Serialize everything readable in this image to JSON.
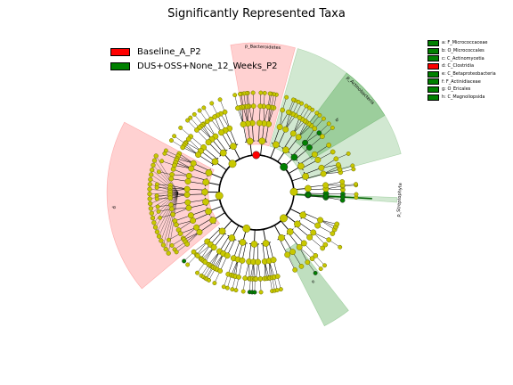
{
  "chart_data": {
    "type": "cladogram",
    "title": "Significantly Represented Taxa",
    "groups": [
      {
        "name": "Baseline_A_P2",
        "color": "#ff0000"
      },
      {
        "name": "DUS+OSS+None_12_Weeks_P2",
        "color": "#008000"
      }
    ],
    "sectors": [
      {
        "label": "p_Bacteroidetes",
        "group": "Baseline_A_P2",
        "from_deg": 75,
        "to_deg": 100,
        "level": "phylum"
      },
      {
        "label": "p",
        "group": "Baseline_A_P2",
        "from_deg": 152,
        "to_deg": 220,
        "level": "phylum"
      },
      {
        "label": "p_Actinobacteria",
        "group": "DUS+OSS+None_12_Weeks_P2",
        "from_deg": 15,
        "to_deg": 74,
        "level": "phylum"
      },
      {
        "label": "b",
        "group": "DUS+OSS+None_12_Weeks_P2",
        "from_deg": 31,
        "to_deg": 53,
        "level": "class"
      },
      {
        "label": "p_Streptophyta",
        "group": "DUS+OSS+None_12_Weeks_P2",
        "from_deg": -4,
        "to_deg": -2,
        "level": "phylum"
      },
      {
        "label": "e",
        "group": "DUS+OSS+None_12_Weeks_P2",
        "from_deg": 297,
        "to_deg": 308,
        "level": "class"
      }
    ],
    "taxa_legend": [
      {
        "key": "a",
        "label": "a: F_Micrococcaceae",
        "group": "DUS+OSS+None_12_Weeks_P2"
      },
      {
        "key": "b",
        "label": "b: O_Micrococcales",
        "group": "DUS+OSS+None_12_Weeks_P2"
      },
      {
        "key": "c",
        "label": "c: C_Actinomycetia",
        "group": "DUS+OSS+None_12_Weeks_P2"
      },
      {
        "key": "d",
        "label": "d: C_Clostridia",
        "group": "Baseline_A_P2"
      },
      {
        "key": "e",
        "label": "e: C_Betaproteobacteria",
        "group": "DUS+OSS+None_12_Weeks_P2"
      },
      {
        "key": "f",
        "label": "f: F_Actinidiaceae",
        "group": "DUS+OSS+None_12_Weeks_P2"
      },
      {
        "key": "g",
        "label": "g: O_Ericales",
        "group": "DUS+OSS+None_12_Weeks_P2"
      },
      {
        "key": "h",
        "label": "h: C_Magnoliopsida",
        "group": "DUS+OSS+None_12_Weeks_P2"
      }
    ],
    "phyla": [
      {
        "from_deg": 110,
        "to_deg": 150
      },
      {
        "from_deg": 152,
        "to_deg": 218
      },
      {
        "from_deg": 222,
        "to_deg": 287
      },
      {
        "from_deg": 293,
        "to_deg": 340
      },
      {
        "from_deg": -6,
        "to_deg": 8
      },
      {
        "from_deg": 12,
        "to_deg": 74
      },
      {
        "from_deg": 77,
        "to_deg": 104
      }
    ],
    "highlighted_nodes": [
      {
        "angle_deg": 88,
        "level": 1,
        "group": "Baseline_A_P2"
      },
      {
        "angle_deg": 180,
        "level": 1,
        "group": "Baseline_A_P2"
      },
      {
        "angle_deg": 44,
        "level": 1,
        "group": "DUS+OSS+None_12_Weeks_P2"
      },
      {
        "angle_deg": 42,
        "level": 2,
        "group": "DUS+OSS+None_12_Weeks_P2"
      },
      {
        "angle_deg": 43,
        "level": 3,
        "group": "DUS+OSS+None_12_Weeks_P2"
      },
      {
        "angle_deg": 44,
        "level": 4,
        "group": "DUS+OSS+None_12_Weeks_P2"
      },
      {
        "angle_deg": 302,
        "level": 1,
        "group": "DUS+OSS+None_12_Weeks_P2"
      },
      {
        "angle_deg": 304,
        "level": 5,
        "group": "DUS+OSS+None_12_Weeks_P2"
      },
      {
        "angle_deg": -3,
        "level": 2,
        "group": "DUS+OSS+None_12_Weeks_P2"
      },
      {
        "angle_deg": -3,
        "level": 3,
        "group": "DUS+OSS+None_12_Weeks_P2"
      },
      {
        "angle_deg": -3,
        "level": 4,
        "group": "DUS+OSS+None_12_Weeks_P2"
      },
      {
        "angle_deg": 267,
        "level": 5,
        "group": "DUS+OSS+None_12_Weeks_P2"
      },
      {
        "angle_deg": 223,
        "level": 5,
        "group": "DUS+OSS+None_12_Weeks_P2"
      }
    ]
  }
}
